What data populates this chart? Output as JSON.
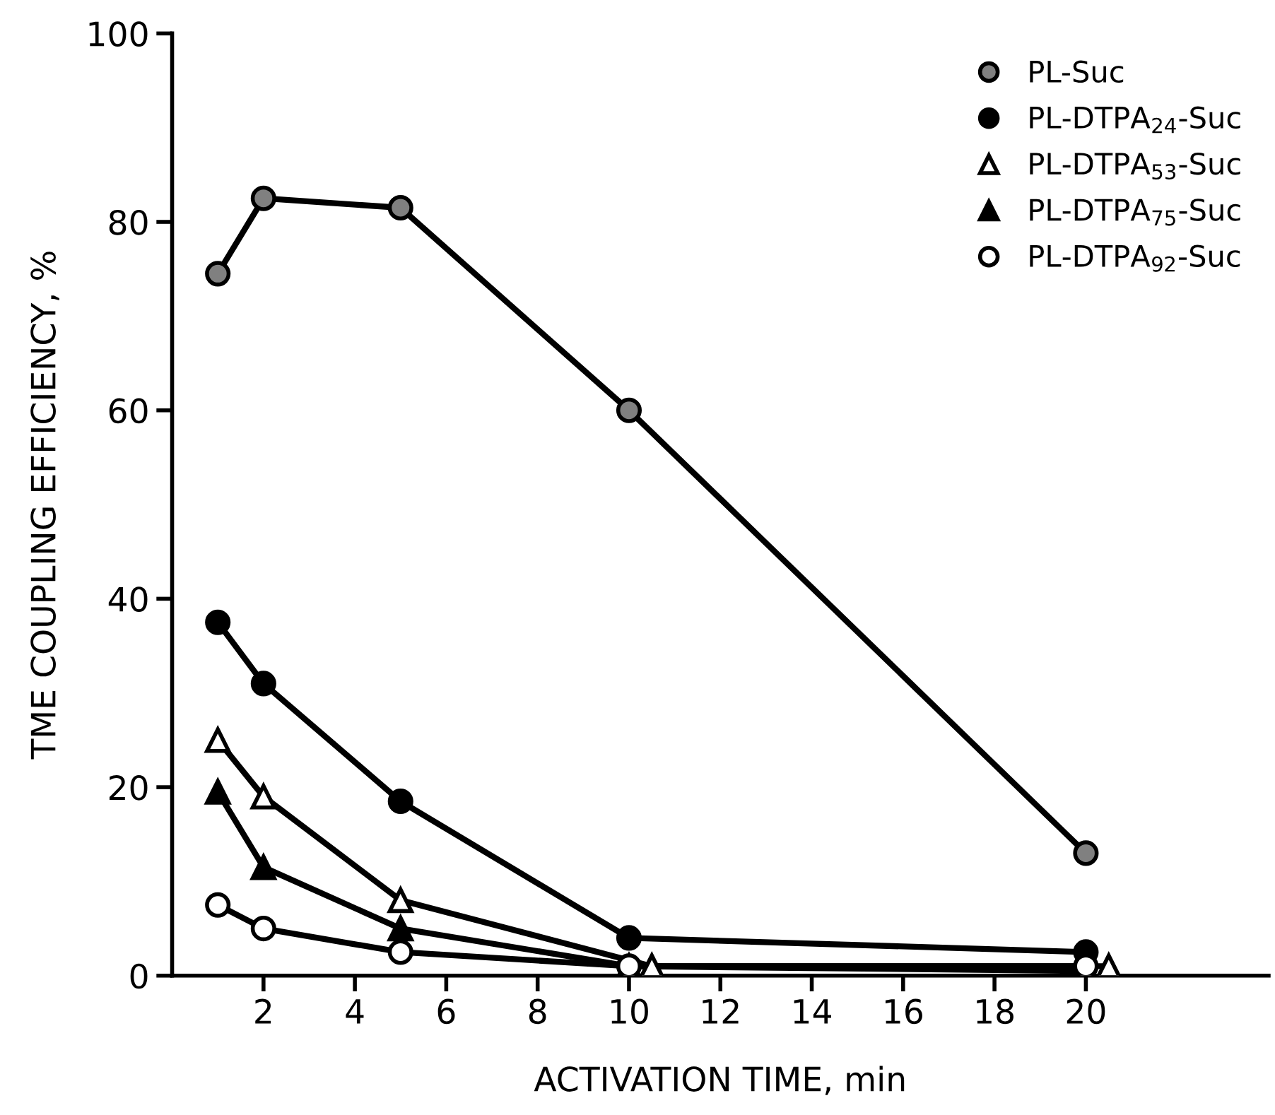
{
  "chart_data": {
    "type": "line",
    "xlabel": "ACTIVATION TIME, min",
    "ylabel": "TME COUPLING EFFICIENCY, %",
    "xlim": [
      0,
      24
    ],
    "ylim": [
      0,
      100
    ],
    "xticks": [
      2,
      4,
      6,
      8,
      10,
      12,
      14,
      16,
      18,
      20
    ],
    "yticks": [
      0,
      20,
      40,
      60,
      80,
      100
    ],
    "grid": false,
    "legend": "top right",
    "line_style": "solid",
    "series": [
      {
        "name": "PL-Suc",
        "color": "#808080",
        "marker": "circle",
        "x": [
          1,
          2,
          5,
          10,
          20
        ],
        "values": [
          74.5,
          82.5,
          81.5,
          60,
          13
        ]
      },
      {
        "name": "PL-DTPA$_{24}$-Suc",
        "color": "#000000",
        "marker": "circle",
        "x": [
          1,
          2,
          5,
          10,
          20
        ],
        "values": [
          37.5,
          31,
          18.5,
          4,
          2.5
        ]
      },
      {
        "name": "PL-DTPA$_{53}$-Suc",
        "color": "#ffffff",
        "marker": "triangle",
        "x": [
          1,
          2,
          5,
          10.5,
          20.5
        ],
        "values": [
          25,
          19,
          8,
          1,
          1
        ]
      },
      {
        "name": "PL-DTPA$_{75}$-Suc",
        "color": "#000000",
        "marker": "triangle",
        "x": [
          1,
          2,
          5,
          10,
          20
        ],
        "values": [
          19.5,
          11.5,
          5,
          1,
          0.5
        ]
      },
      {
        "name": "PL-DTPA$_{92}$-Suc",
        "color": "#ffffff",
        "marker": "circle",
        "x": [
          1,
          2,
          5,
          10,
          20
        ],
        "values": [
          7.5,
          5,
          2.5,
          1,
          1
        ]
      }
    ]
  }
}
